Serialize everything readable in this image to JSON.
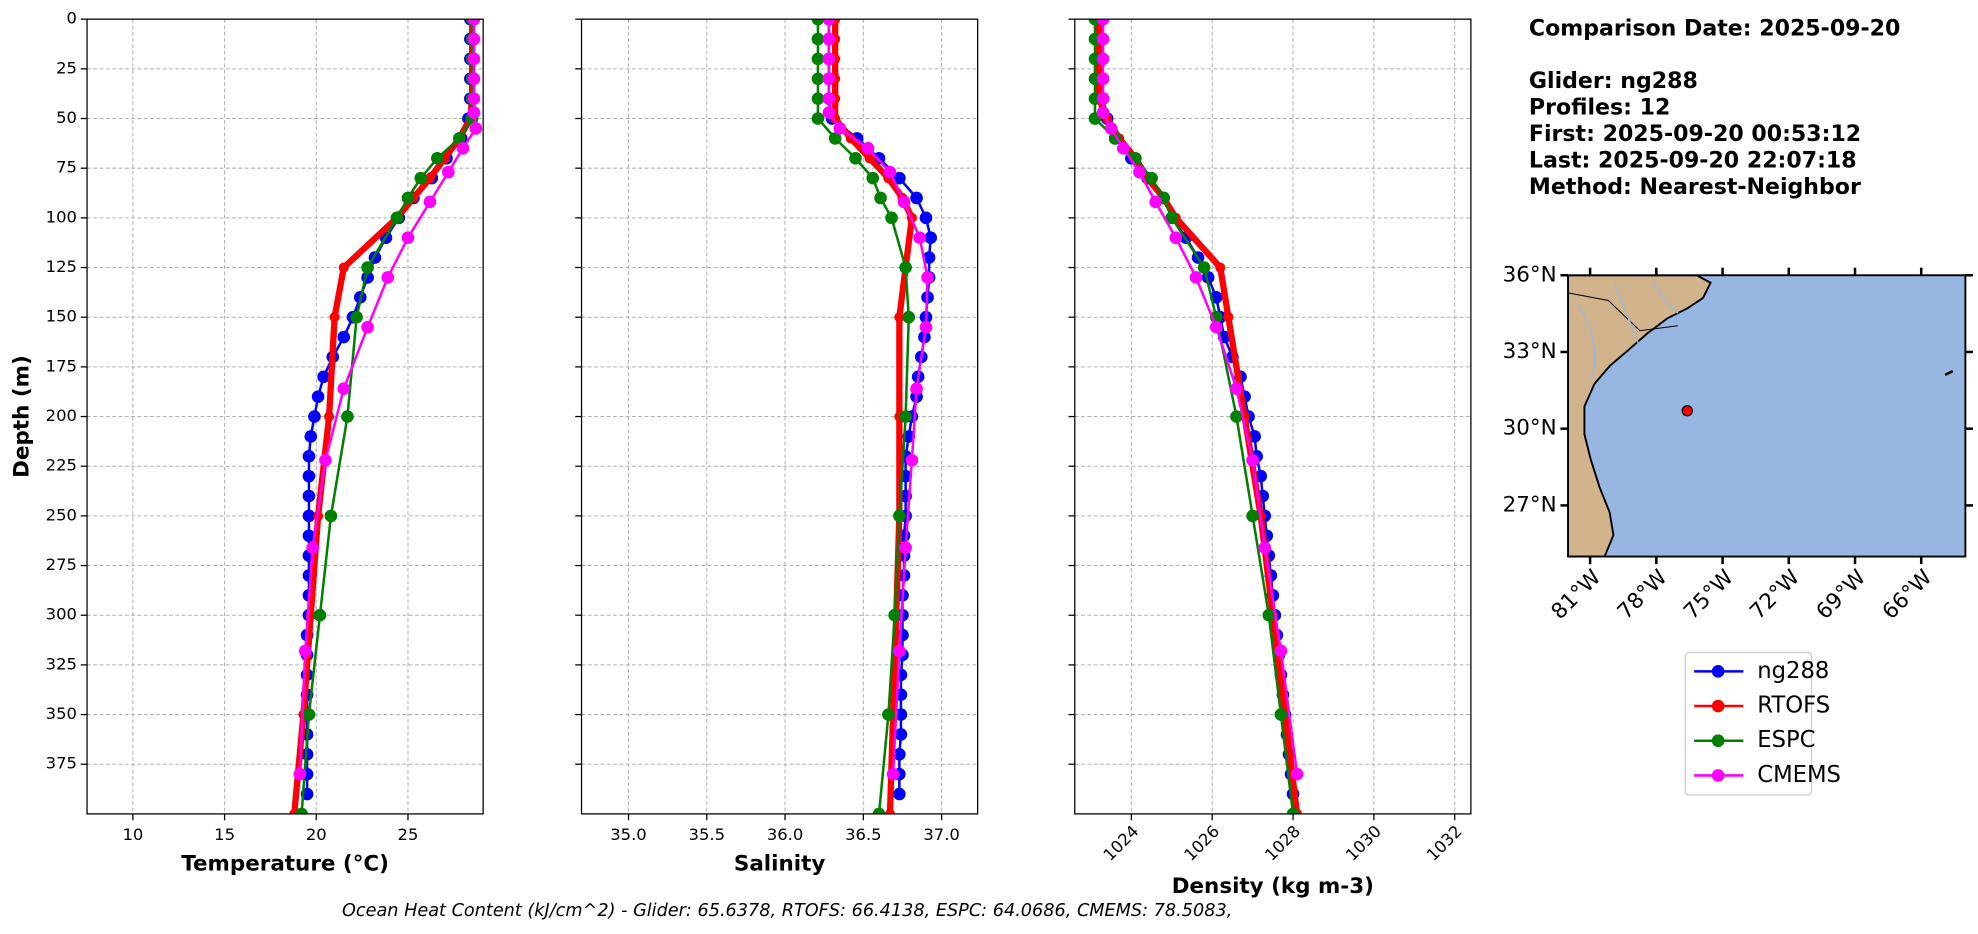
{
  "chart_data": [
    {
      "type": "line",
      "xlabel": "Temperature (°C)",
      "ylabel": "Depth (m)",
      "xlim": [
        7.5,
        29.1
      ],
      "xticks": [
        10,
        15,
        20,
        25
      ],
      "ylim": [
        400,
        0
      ],
      "yticks": [
        0,
        25,
        50,
        75,
        100,
        125,
        150,
        175,
        200,
        225,
        250,
        275,
        300,
        325,
        350,
        375
      ],
      "ytick_labels": true,
      "grid": true,
      "series": [
        {
          "name": "ng288",
          "color": "#0000ff",
          "linewidth": 2,
          "markersize": 5,
          "y": [
            0,
            10,
            20,
            30,
            40,
            50,
            60,
            70,
            80,
            90,
            100,
            110,
            120,
            130,
            140,
            150,
            160,
            170,
            180,
            190,
            200,
            210,
            220,
            230,
            240,
            250,
            260,
            270,
            280,
            290,
            300,
            310,
            320,
            330,
            340,
            350,
            360,
            370,
            380,
            390
          ],
          "x": [
            28.4,
            28.4,
            28.4,
            28.4,
            28.4,
            28.3,
            27.9,
            27.1,
            26.3,
            25.3,
            24.5,
            23.8,
            23.2,
            22.8,
            22.4,
            22.0,
            21.5,
            20.9,
            20.4,
            20.1,
            19.9,
            19.7,
            19.6,
            19.6,
            19.6,
            19.6,
            19.6,
            19.6,
            19.6,
            19.6,
            19.6,
            19.5,
            19.5,
            19.5,
            19.5,
            19.5,
            19.5,
            19.5,
            19.5,
            19.5
          ]
        },
        {
          "name": "RTOFS",
          "color": "#ff0000",
          "linewidth": 5,
          "markersize": 4,
          "y": [
            0,
            10,
            20,
            30,
            40,
            50,
            60,
            70,
            80,
            90,
            100,
            125,
            150,
            200,
            250,
            300,
            350,
            400
          ],
          "x": [
            28.5,
            28.5,
            28.5,
            28.5,
            28.5,
            28.4,
            27.8,
            27.0,
            26.2,
            25.3,
            24.4,
            21.5,
            21.0,
            20.7,
            20.1,
            19.7,
            19.3,
            18.8
          ]
        },
        {
          "name": "ESPC",
          "color": "#008000",
          "linewidth": 2,
          "markersize": 5,
          "y": [
            0,
            10,
            20,
            30,
            40,
            50,
            60,
            70,
            80,
            90,
            100,
            125,
            150,
            200,
            250,
            300,
            350,
            400
          ],
          "x": [
            28.5,
            28.5,
            28.5,
            28.5,
            28.5,
            28.5,
            27.8,
            26.6,
            25.7,
            25.0,
            24.4,
            22.8,
            22.2,
            21.7,
            20.8,
            20.2,
            19.6,
            19.2
          ]
        },
        {
          "name": "CMEMS",
          "color": "#ff00ff",
          "linewidth": 2,
          "markersize": 5,
          "y": [
            0,
            10,
            20,
            30,
            40,
            47,
            55,
            65,
            77,
            92,
            110,
            130,
            155,
            186,
            222,
            266,
            318,
            380
          ],
          "x": [
            28.6,
            28.6,
            28.6,
            28.6,
            28.6,
            28.6,
            28.7,
            28.0,
            27.2,
            26.2,
            25.0,
            23.9,
            22.8,
            21.5,
            20.5,
            19.8,
            19.4,
            19.1
          ]
        }
      ]
    },
    {
      "type": "line",
      "xlabel": "Salinity",
      "xlim": [
        34.7,
        37.23
      ],
      "xticks": [
        {
          "value": 35,
          "label": "35.0"
        },
        35.5,
        {
          "value": 36,
          "label": "36.0"
        },
        36.5,
        {
          "value": 37,
          "label": "37.0"
        }
      ],
      "ylim": [
        400,
        0
      ],
      "yticks": [
        0,
        25,
        50,
        75,
        100,
        125,
        150,
        175,
        200,
        225,
        250,
        275,
        300,
        325,
        350,
        375
      ],
      "ytick_labels": false,
      "grid": true,
      "series": [
        {
          "name": "ng288",
          "color": "#0000ff",
          "linewidth": 2,
          "markersize": 5,
          "y": [
            0,
            10,
            20,
            30,
            40,
            50,
            60,
            70,
            80,
            90,
            100,
            110,
            120,
            130,
            140,
            150,
            160,
            170,
            180,
            190,
            200,
            210,
            220,
            230,
            240,
            250,
            260,
            270,
            280,
            290,
            300,
            310,
            320,
            330,
            340,
            350,
            360,
            370,
            380,
            390
          ],
          "x": [
            36.28,
            36.28,
            36.28,
            36.28,
            36.28,
            36.3,
            36.46,
            36.6,
            36.73,
            36.84,
            36.9,
            36.93,
            36.92,
            36.92,
            36.91,
            36.9,
            36.89,
            36.87,
            36.85,
            36.84,
            36.81,
            36.79,
            36.77,
            36.77,
            36.77,
            36.77,
            36.76,
            36.76,
            36.76,
            36.75,
            36.75,
            36.75,
            36.75,
            36.74,
            36.74,
            36.74,
            36.74,
            36.73,
            36.73,
            36.73
          ]
        },
        {
          "name": "RTOFS",
          "color": "#ff0000",
          "linewidth": 5,
          "markersize": 4,
          "y": [
            0,
            10,
            20,
            30,
            40,
            50,
            60,
            70,
            80,
            90,
            100,
            125,
            150,
            200,
            250,
            300,
            350,
            400
          ],
          "x": [
            36.32,
            36.32,
            36.32,
            36.32,
            36.32,
            36.32,
            36.42,
            36.54,
            36.66,
            36.75,
            36.81,
            36.77,
            36.73,
            36.73,
            36.73,
            36.71,
            36.69,
            36.67
          ]
        },
        {
          "name": "ESPC",
          "color": "#008000",
          "linewidth": 2,
          "markersize": 5,
          "y": [
            0,
            10,
            20,
            30,
            40,
            50,
            60,
            70,
            80,
            90,
            100,
            125,
            150,
            200,
            250,
            300,
            350,
            400
          ],
          "x": [
            36.21,
            36.21,
            36.21,
            36.21,
            36.21,
            36.21,
            36.32,
            36.45,
            36.56,
            36.61,
            36.68,
            36.77,
            36.79,
            36.77,
            36.73,
            36.7,
            36.66,
            36.6
          ]
        },
        {
          "name": "CMEMS",
          "color": "#ff00ff",
          "linewidth": 2,
          "markersize": 5,
          "y": [
            0,
            10,
            20,
            30,
            40,
            47,
            55,
            65,
            77,
            92,
            110,
            130,
            155,
            186,
            222,
            266,
            318,
            380
          ],
          "x": [
            36.28,
            36.28,
            36.28,
            36.28,
            36.28,
            36.28,
            36.35,
            36.53,
            36.67,
            36.76,
            36.86,
            36.91,
            36.9,
            36.84,
            36.81,
            36.77,
            36.73,
            36.69
          ]
        }
      ]
    },
    {
      "type": "line",
      "xlabel": "Density (kg m-3)",
      "xlim": [
        1022.6,
        1032.4
      ],
      "xticks": [
        1024,
        1026,
        1028,
        1030,
        1032
      ],
      "xtick_rotation": 45,
      "ylim": [
        400,
        0
      ],
      "yticks": [
        0,
        25,
        50,
        75,
        100,
        125,
        150,
        175,
        200,
        225,
        250,
        275,
        300,
        325,
        350,
        375
      ],
      "ytick_labels": false,
      "grid": true,
      "series": [
        {
          "name": "ng288",
          "color": "#0000ff",
          "linewidth": 2,
          "markersize": 5,
          "y": [
            0,
            10,
            20,
            30,
            40,
            50,
            60,
            70,
            80,
            90,
            100,
            110,
            120,
            130,
            140,
            150,
            160,
            170,
            180,
            190,
            200,
            210,
            220,
            230,
            240,
            250,
            260,
            270,
            280,
            290,
            300,
            310,
            320,
            330,
            340,
            350,
            360,
            370,
            380,
            390
          ],
          "x": [
            1023.2,
            1023.2,
            1023.2,
            1023.2,
            1023.3,
            1023.4,
            1023.6,
            1024.0,
            1024.4,
            1024.8,
            1025.0,
            1025.35,
            1025.65,
            1025.9,
            1026.1,
            1026.2,
            1026.3,
            1026.5,
            1026.7,
            1026.8,
            1026.9,
            1027.05,
            1027.1,
            1027.2,
            1027.25,
            1027.3,
            1027.35,
            1027.4,
            1027.45,
            1027.5,
            1027.55,
            1027.6,
            1027.65,
            1027.7,
            1027.75,
            1027.8,
            1027.85,
            1027.9,
            1027.95,
            1028.0
          ]
        },
        {
          "name": "RTOFS",
          "color": "#ff0000",
          "linewidth": 5,
          "markersize": 4,
          "y": [
            0,
            10,
            20,
            30,
            40,
            50,
            60,
            70,
            80,
            90,
            100,
            125,
            150,
            200,
            250,
            300,
            350,
            400
          ],
          "x": [
            1023.2,
            1023.2,
            1023.2,
            1023.2,
            1023.2,
            1023.4,
            1023.7,
            1024.1,
            1024.4,
            1024.8,
            1025.1,
            1026.2,
            1026.4,
            1026.8,
            1027.2,
            1027.5,
            1027.8,
            1028.1
          ]
        },
        {
          "name": "ESPC",
          "color": "#008000",
          "linewidth": 2,
          "markersize": 5,
          "y": [
            0,
            10,
            20,
            30,
            40,
            50,
            60,
            70,
            80,
            90,
            100,
            125,
            150,
            200,
            250,
            300,
            350,
            400
          ],
          "x": [
            1023.1,
            1023.1,
            1023.1,
            1023.1,
            1023.1,
            1023.1,
            1023.6,
            1024.1,
            1024.5,
            1024.8,
            1025.0,
            1025.8,
            1026.1,
            1026.6,
            1027.0,
            1027.4,
            1027.7,
            1028.0
          ]
        },
        {
          "name": "CMEMS",
          "color": "#ff00ff",
          "linewidth": 2,
          "markersize": 5,
          "y": [
            0,
            10,
            20,
            30,
            40,
            47,
            55,
            65,
            77,
            92,
            110,
            130,
            155,
            186,
            222,
            266,
            318,
            380
          ],
          "x": [
            1023.3,
            1023.3,
            1023.3,
            1023.3,
            1023.3,
            1023.3,
            1023.5,
            1023.8,
            1024.2,
            1024.6,
            1025.1,
            1025.6,
            1026.1,
            1026.6,
            1027.0,
            1027.3,
            1027.7,
            1028.1
          ]
        }
      ]
    },
    {
      "type": "map",
      "xlim": [
        -82,
        -64
      ],
      "ylim": [
        25,
        36
      ],
      "xticks": [
        {
          "value": -81,
          "label": "81°W"
        },
        {
          "value": -78,
          "label": "78°W"
        },
        {
          "value": -75,
          "label": "75°W"
        },
        {
          "value": -72,
          "label": "72°W"
        },
        {
          "value": -69,
          "label": "69°W"
        },
        {
          "value": -66,
          "label": "66°W"
        }
      ],
      "yticks": [
        {
          "value": 36,
          "label": "36°N"
        },
        {
          "value": 33,
          "label": "33°N"
        },
        {
          "value": 30,
          "label": "30°N"
        },
        {
          "value": 27,
          "label": "27°N"
        }
      ],
      "point": {
        "lon": -76.6,
        "lat": 30.7,
        "color": "#ff0000"
      }
    }
  ],
  "info": [
    "Comparison Date: 2025-09-20",
    "Glider: ng288",
    "Profiles: 12",
    "First: 2025-09-20 00:53:12",
    "Last: 2025-09-20 22:07:18",
    "Method: Nearest-Neighbor"
  ],
  "footer": "Ocean Heat Content (kJ/cm^2) - Glider: 65.6378,  RTOFS: 66.4138,  ESPC: 64.0686,  CMEMS: 78.5083,"
}
